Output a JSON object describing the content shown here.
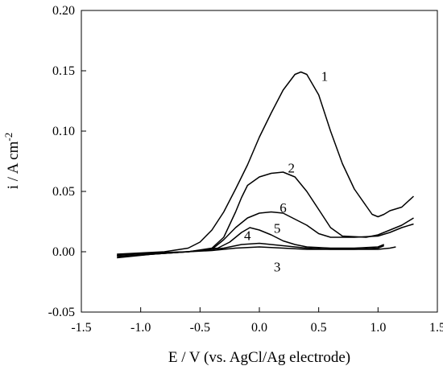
{
  "chart_data": {
    "type": "line",
    "title": "",
    "xlabel": "E / V (vs. AgCl/Ag electrode)",
    "ylabel": {
      "main": "i / A cm",
      "sup": "-2"
    },
    "xlim": [
      -1.5,
      1.5
    ],
    "ylim": [
      -0.05,
      0.2
    ],
    "xticks": [
      "-1.5",
      "-1.0",
      "-0.5",
      "0.0",
      "0.5",
      "1.0",
      "1.5"
    ],
    "yticks": [
      "-0.05",
      "0.00",
      "0.05",
      "0.10",
      "0.15",
      "0.20"
    ],
    "grid": false,
    "legend": "none",
    "series": [
      {
        "name": "1",
        "points": [
          [
            -1.2,
            -0.002
          ],
          [
            -1.0,
            -0.001
          ],
          [
            -0.8,
            0.0
          ],
          [
            -0.6,
            0.003
          ],
          [
            -0.5,
            0.008
          ],
          [
            -0.4,
            0.018
          ],
          [
            -0.3,
            0.033
          ],
          [
            -0.2,
            0.052
          ],
          [
            -0.1,
            0.072
          ],
          [
            0.0,
            0.095
          ],
          [
            0.1,
            0.115
          ],
          [
            0.2,
            0.134
          ],
          [
            0.3,
            0.147
          ],
          [
            0.35,
            0.149
          ],
          [
            0.4,
            0.147
          ],
          [
            0.5,
            0.13
          ],
          [
            0.6,
            0.1
          ],
          [
            0.7,
            0.073
          ],
          [
            0.8,
            0.052
          ],
          [
            0.9,
            0.038
          ],
          [
            0.95,
            0.031
          ],
          [
            1.0,
            0.029
          ],
          [
            1.05,
            0.031
          ],
          [
            1.1,
            0.034
          ],
          [
            1.2,
            0.037
          ],
          [
            1.3,
            0.046
          ]
        ],
        "label": "1",
        "label_at": [
          0.55,
          0.145
        ]
      },
      {
        "name": "2",
        "points": [
          [
            -1.15,
            -0.004
          ],
          [
            -0.9,
            -0.002
          ],
          [
            -0.6,
            -0.0
          ],
          [
            -0.4,
            0.003
          ],
          [
            -0.3,
            0.012
          ],
          [
            -0.2,
            0.033
          ],
          [
            -0.15,
            0.045
          ],
          [
            -0.1,
            0.055
          ],
          [
            0.0,
            0.062
          ],
          [
            0.1,
            0.065
          ],
          [
            0.2,
            0.066
          ],
          [
            0.3,
            0.062
          ],
          [
            0.4,
            0.05
          ],
          [
            0.5,
            0.035
          ],
          [
            0.6,
            0.02
          ],
          [
            0.7,
            0.013
          ],
          [
            0.9,
            0.012
          ],
          [
            1.0,
            0.014
          ],
          [
            1.1,
            0.018
          ],
          [
            1.2,
            0.022
          ],
          [
            1.3,
            0.028
          ]
        ],
        "label": "2",
        "label_at": [
          0.27,
          0.069
        ]
      },
      {
        "name": "3",
        "points": [
          [
            -1.2,
            -0.005
          ],
          [
            -0.9,
            -0.002
          ],
          [
            -0.6,
            -0.0
          ],
          [
            -0.4,
            0.001
          ],
          [
            -0.2,
            0.003
          ],
          [
            0.0,
            0.004
          ],
          [
            0.2,
            0.003
          ],
          [
            0.4,
            0.002
          ],
          [
            0.6,
            0.002
          ],
          [
            0.8,
            0.002
          ],
          [
            1.0,
            0.002
          ],
          [
            1.1,
            0.003
          ],
          [
            1.15,
            0.004
          ]
        ],
        "label": "3",
        "label_at": [
          0.15,
          -0.013
        ]
      },
      {
        "name": "4",
        "points": [
          [
            -1.2,
            -0.004
          ],
          [
            -0.9,
            -0.002
          ],
          [
            -0.6,
            -0.0
          ],
          [
            -0.3,
            0.003
          ],
          [
            -0.15,
            0.006
          ],
          [
            0.0,
            0.007
          ],
          [
            0.2,
            0.005
          ],
          [
            0.4,
            0.003
          ],
          [
            0.6,
            0.002
          ],
          [
            0.8,
            0.002
          ],
          [
            1.0,
            0.003
          ],
          [
            1.05,
            0.005
          ]
        ],
        "label": "4",
        "label_at": [
          -0.1,
          0.013
        ]
      },
      {
        "name": "5",
        "points": [
          [
            -1.2,
            -0.003
          ],
          [
            -0.9,
            -0.001
          ],
          [
            -0.6,
            0.0
          ],
          [
            -0.35,
            0.003
          ],
          [
            -0.25,
            0.008
          ],
          [
            -0.15,
            0.016
          ],
          [
            -0.08,
            0.02
          ],
          [
            0.0,
            0.018
          ],
          [
            0.1,
            0.014
          ],
          [
            0.2,
            0.009
          ],
          [
            0.3,
            0.006
          ],
          [
            0.4,
            0.004
          ],
          [
            0.6,
            0.003
          ],
          [
            0.8,
            0.003
          ],
          [
            1.0,
            0.004
          ],
          [
            1.05,
            0.006
          ]
        ],
        "label": "5",
        "label_at": [
          0.15,
          0.019
        ]
      },
      {
        "name": "6",
        "points": [
          [
            -1.2,
            -0.003
          ],
          [
            -0.9,
            -0.001
          ],
          [
            -0.6,
            0.0
          ],
          [
            -0.4,
            0.002
          ],
          [
            -0.3,
            0.01
          ],
          [
            -0.2,
            0.02
          ],
          [
            -0.1,
            0.028
          ],
          [
            0.0,
            0.032
          ],
          [
            0.1,
            0.033
          ],
          [
            0.2,
            0.032
          ],
          [
            0.3,
            0.027
          ],
          [
            0.4,
            0.022
          ],
          [
            0.5,
            0.015
          ],
          [
            0.6,
            0.012
          ],
          [
            0.8,
            0.012
          ],
          [
            1.0,
            0.013
          ],
          [
            1.1,
            0.016
          ],
          [
            1.2,
            0.02
          ],
          [
            1.3,
            0.023
          ]
        ],
        "label": "6",
        "label_at": [
          0.2,
          0.036
        ]
      }
    ]
  }
}
